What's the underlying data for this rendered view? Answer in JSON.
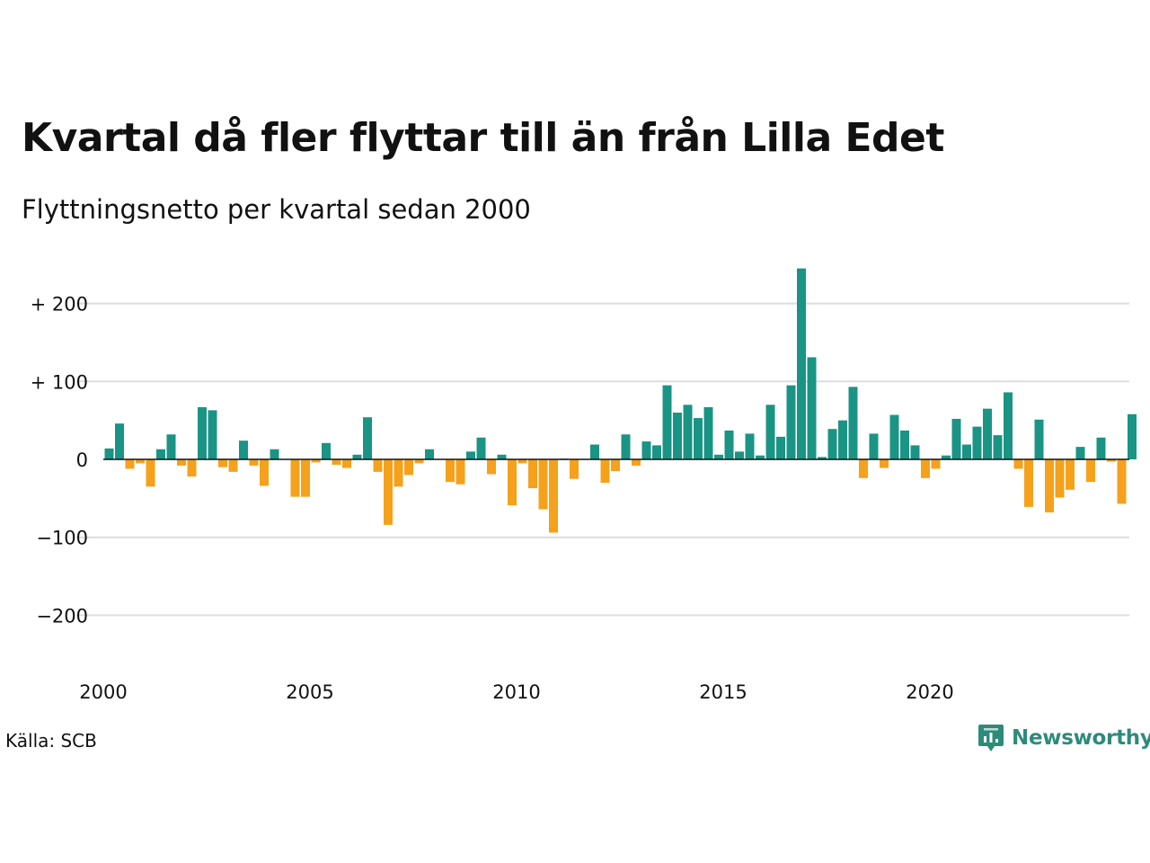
{
  "header": {
    "title": "Kvartal då fler flyttar till än från Lilla Edet",
    "subtitle": "Flyttningsnetto per kvartal sedan 2000"
  },
  "footer": {
    "source": "Källa: SCB",
    "brand": "Newsworthy"
  },
  "colors": {
    "positive": "#1a9484",
    "negative": "#f5a11c",
    "grid": "#dddddd",
    "brand": "#2e8b7a"
  },
  "icons": {
    "brand_logo": "chart-speech-bubble-icon"
  },
  "chart_data": {
    "type": "bar",
    "title": "Kvartal då fler flyttar till än från Lilla Edet",
    "subtitle": "Flyttningsnetto per kvartal sedan 2000",
    "x_start_year": 2000,
    "periods_per_year": 4,
    "x_ticks": [
      2000,
      2005,
      2010,
      2015,
      2020
    ],
    "ylim": [
      -250,
      250
    ],
    "y_ticks": [
      {
        "value": 200,
        "label": "+ 200"
      },
      {
        "value": 100,
        "label": "+ 100"
      },
      {
        "value": 0,
        "label": "0"
      },
      {
        "value": -100,
        "label": "−100"
      },
      {
        "value": -200,
        "label": "−200"
      }
    ],
    "grid": true,
    "legend": "none",
    "values": [
      14,
      46,
      -12,
      -5,
      -35,
      13,
      32,
      -8,
      -22,
      67,
      63,
      -10,
      -16,
      24,
      -8,
      -34,
      13,
      0,
      -48,
      -48,
      -4,
      21,
      -7,
      -11,
      6,
      54,
      -16,
      -84,
      -35,
      -20,
      -5,
      13,
      0,
      -29,
      -32,
      10,
      28,
      -19,
      6,
      -59,
      -5,
      -37,
      -64,
      -94,
      1,
      -25,
      0,
      19,
      -30,
      -15,
      32,
      -8,
      23,
      18,
      95,
      60,
      70,
      53,
      67,
      6,
      37,
      10,
      33,
      5,
      70,
      29,
      95,
      245,
      131,
      3,
      39,
      50,
      93,
      -24,
      33,
      -11,
      57,
      37,
      18,
      -24,
      -12,
      5,
      52,
      19,
      42,
      65,
      31,
      86,
      -12,
      -61,
      51,
      -68,
      -49,
      -39,
      16,
      -29,
      28,
      -3,
      -57,
      58
    ]
  }
}
